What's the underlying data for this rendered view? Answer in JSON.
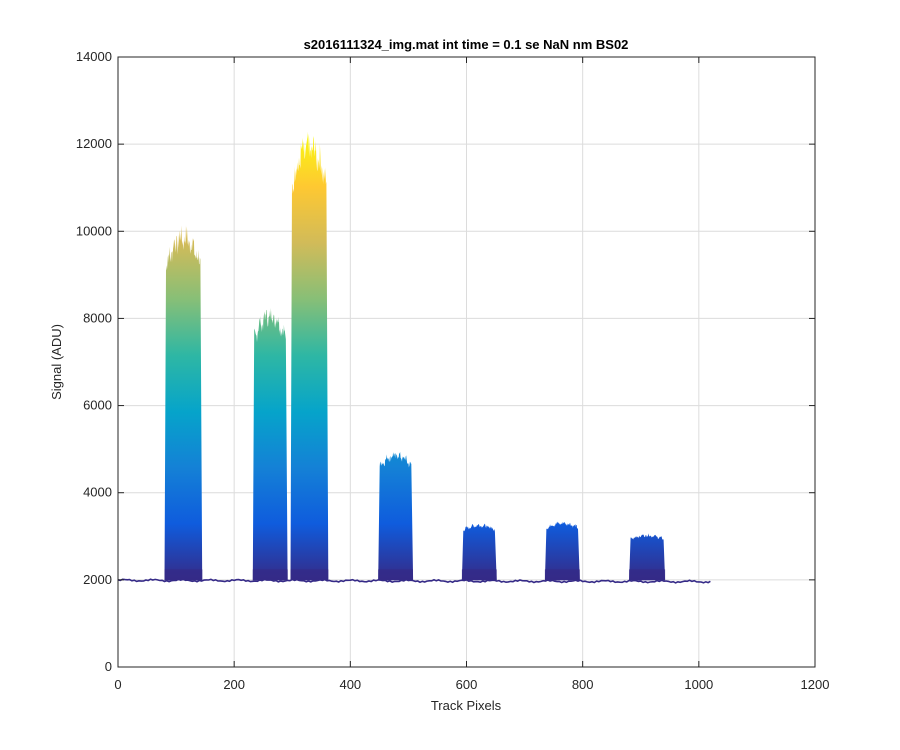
{
  "chart_data": {
    "type": "area",
    "title": "s2016111324_img.mat int time = 0.1 se  NaN nm BS02",
    "xlabel": "Track Pixels",
    "ylabel": "Signal (ADU)",
    "xlim": [
      0,
      1200
    ],
    "ylim": [
      0,
      14000
    ],
    "x_ticks": [
      "0",
      "200",
      "400",
      "600",
      "800",
      "1000",
      "1200"
    ],
    "y_ticks": [
      "0",
      "2000",
      "4000",
      "6000",
      "8000",
      "10000",
      "12000",
      "14000"
    ],
    "grid": true,
    "colormap": [
      "#352a87",
      "#0f5cdd",
      "#1481d6",
      "#06a4ca",
      "#2eb7a4",
      "#87bf77",
      "#d1bb59",
      "#fec832",
      "#f9fb0e"
    ],
    "baseline": 1990,
    "x_end": 1023,
    "peaks": [
      {
        "x_start": 80,
        "x_end": 145,
        "top": 9850
      },
      {
        "x_start": 232,
        "x_end": 292,
        "top": 8050
      },
      {
        "x_start": 297,
        "x_end": 362,
        "top": 11900
      },
      {
        "x_start": 448,
        "x_end": 508,
        "top": 4850
      },
      {
        "x_start": 592,
        "x_end": 652,
        "top": 3250
      },
      {
        "x_start": 735,
        "x_end": 795,
        "top": 3300
      },
      {
        "x_start": 880,
        "x_end": 942,
        "top": 3020
      }
    ]
  }
}
